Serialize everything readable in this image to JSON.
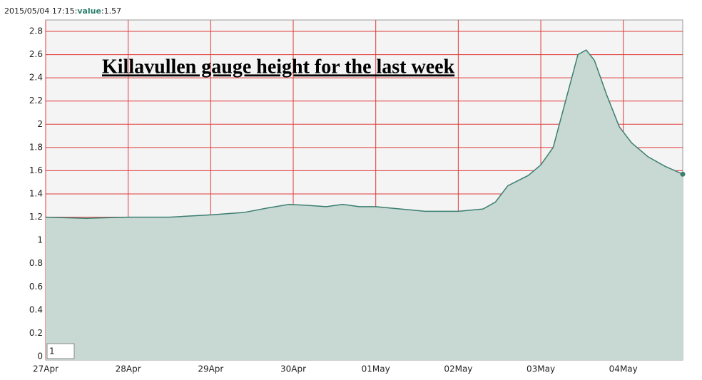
{
  "chart_data": {
    "type": "area",
    "title": "Killavullen gauge height for the last week",
    "readout": {
      "time": "2015/05/04 17:15:",
      "label": "value",
      "value": ":1.57"
    },
    "range_box": "1",
    "x": [
      0,
      0.5,
      1,
      1.5,
      2,
      2.4,
      2.7,
      2.95,
      3.2,
      3.4,
      3.6,
      3.8,
      4.0,
      4.3,
      4.6,
      5.0,
      5.3,
      5.45,
      5.6,
      5.85,
      6.0,
      6.15,
      6.3,
      6.45,
      6.55,
      6.65,
      6.8,
      6.95,
      7.1,
      7.3,
      7.5,
      7.72
    ],
    "series": [
      {
        "name": "value",
        "color": "#3b7f70",
        "fill": "#c8d8d3",
        "values": [
          1.2,
          1.19,
          1.2,
          1.2,
          1.22,
          1.24,
          1.28,
          1.31,
          1.3,
          1.29,
          1.31,
          1.29,
          1.29,
          1.27,
          1.25,
          1.25,
          1.27,
          1.33,
          1.47,
          1.56,
          1.65,
          1.8,
          2.2,
          2.6,
          2.64,
          2.55,
          2.25,
          1.98,
          1.84,
          1.72,
          1.64,
          1.57
        ]
      }
    ],
    "xlim": [
      0,
      7.72
    ],
    "xticks": [
      {
        "value": 0,
        "label": "27Apr"
      },
      {
        "value": 1,
        "label": "28Apr"
      },
      {
        "value": 2,
        "label": "29Apr"
      },
      {
        "value": 3,
        "label": "30Apr"
      },
      {
        "value": 4,
        "label": "01May"
      },
      {
        "value": 5,
        "label": "02May"
      },
      {
        "value": 6,
        "label": "03May"
      },
      {
        "value": 7,
        "label": "04May"
      }
    ],
    "ylim": [
      0,
      2.8
    ],
    "yticks": [
      0,
      0.2,
      0.4,
      0.6,
      0.8,
      1,
      1.2,
      1.4,
      1.6,
      1.8,
      2,
      2.2,
      2.4,
      2.6,
      2.8
    ],
    "grid": true,
    "grid_color": "#e03a3a"
  }
}
